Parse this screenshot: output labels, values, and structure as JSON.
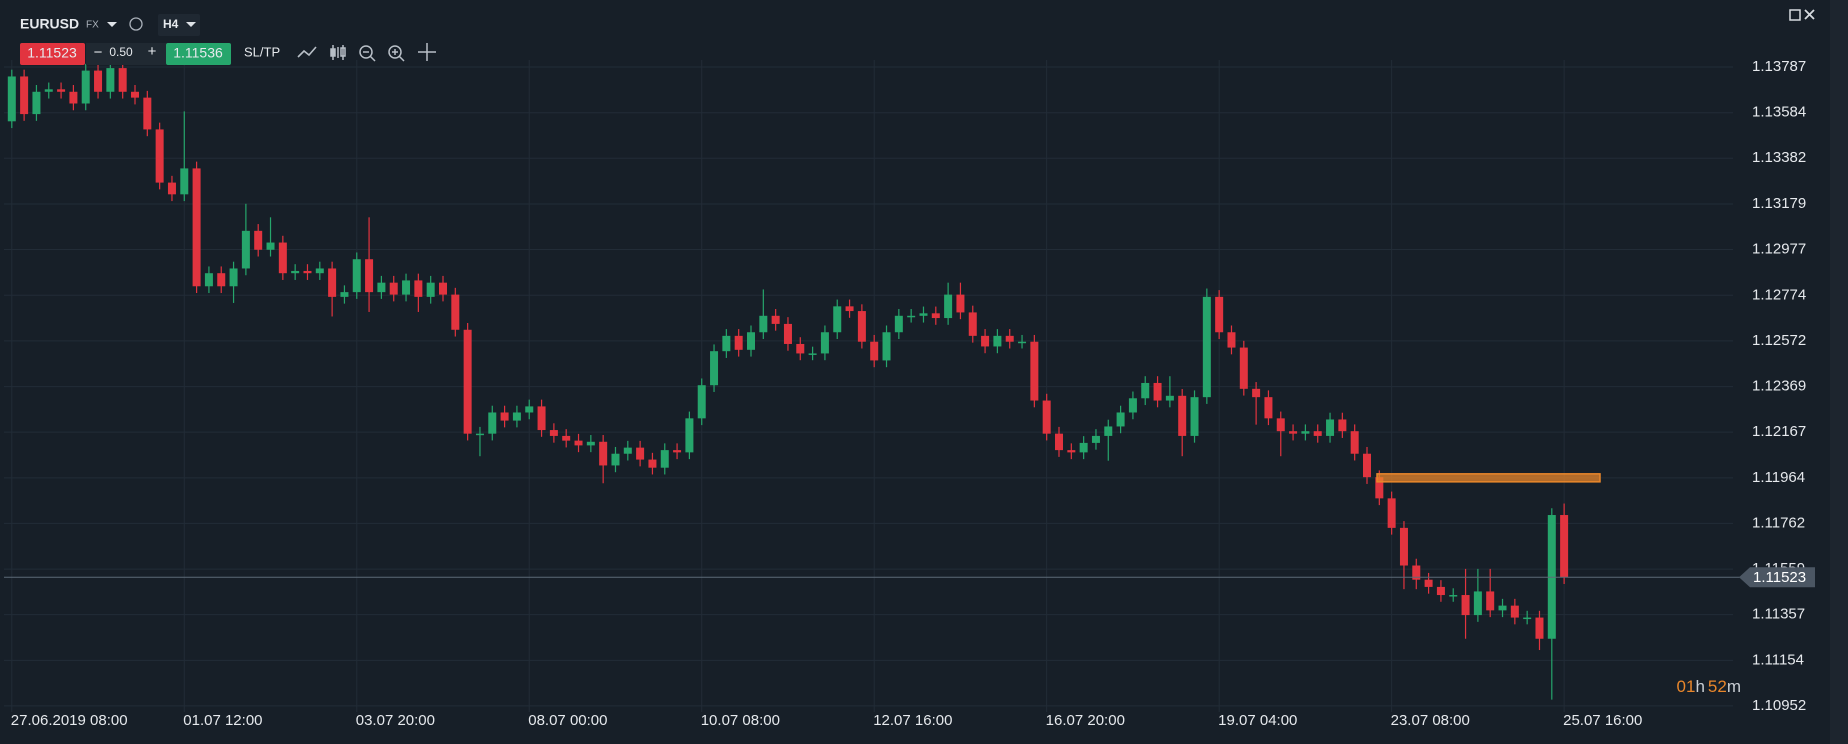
{
  "toolbar": {
    "symbol": "EURUSD",
    "market": "FX",
    "timeframe": "H4",
    "bid": "1.11523",
    "minus": "−",
    "spread": "0.50",
    "plus": "+",
    "ask": "1.11536",
    "sltp": "SL/TP"
  },
  "timer": {
    "hours": "01",
    "hours_unit": "h",
    "minutes": "52",
    "minutes_unit": "m"
  },
  "chart_data": {
    "type": "candlestick",
    "up_color": "#26a66c",
    "down_color": "#e2343f",
    "grid": true,
    "ylim": [
      1.10925,
      1.13818
    ],
    "yticks": [
      1.13787,
      1.13584,
      1.13382,
      1.13179,
      1.12977,
      1.12774,
      1.12572,
      1.12369,
      1.12167,
      1.11964,
      1.11762,
      1.11559,
      1.11357,
      1.11154,
      1.10952
    ],
    "current_price": 1.11523,
    "alert_level": 1.11964,
    "alert_color": "#e8862b",
    "categories": [
      "27.06.2019 08:00",
      null,
      null,
      null,
      null,
      null,
      null,
      null,
      null,
      null,
      null,
      null,
      null,
      null,
      "01.07 12:00",
      null,
      null,
      null,
      null,
      null,
      null,
      null,
      null,
      null,
      null,
      null,
      null,
      null,
      "03.07 20:00",
      null,
      null,
      null,
      null,
      null,
      null,
      null,
      null,
      null,
      null,
      null,
      null,
      null,
      "08.07 00:00",
      null,
      null,
      null,
      null,
      null,
      null,
      null,
      null,
      null,
      null,
      null,
      null,
      null,
      "10.07 08:00",
      null,
      null,
      null,
      null,
      null,
      null,
      null,
      null,
      null,
      null,
      null,
      null,
      null,
      "12.07 16:00",
      null,
      null,
      null,
      null,
      null,
      null,
      null,
      null,
      null,
      null,
      null,
      null,
      null,
      "16.07 20:00",
      null,
      null,
      null,
      null,
      null,
      null,
      null,
      null,
      null,
      null,
      null,
      null,
      null,
      "19.07 04:00",
      null,
      null,
      null,
      null,
      null,
      null,
      null,
      null,
      null,
      null,
      null,
      null,
      null,
      "23.07 08:00",
      null,
      null,
      null,
      null,
      null,
      null,
      null,
      null,
      null,
      null,
      null,
      null,
      null,
      "25.07 16:00"
    ],
    "open": [
      1.13546,
      1.13745,
      1.13578,
      1.13677,
      1.13688,
      1.13677,
      1.13625,
      1.13771,
      1.13677,
      1.13782,
      1.13677,
      1.13651,
      1.1351,
      1.13274,
      1.13222,
      1.13337,
      1.12814,
      1.12872,
      1.12814,
      1.12893,
      1.1306,
      1.12976,
      1.13008,
      1.12872,
      1.12882,
      1.12872,
      1.12893,
      1.12767,
      1.12788,
      1.12934,
      1.12788,
      1.1283,
      1.12777,
      1.1284,
      1.12767,
      1.1283,
      1.12777,
      1.12621,
      1.1216,
      1.1216,
      1.12254,
      1.12218,
      1.12254,
      1.12281,
      1.12176,
      1.1215,
      1.12129,
      1.12108,
      1.12124,
      1.12019,
      1.12071,
      1.12098,
      1.12045,
      1.12009,
      1.12087,
      1.12077,
      1.12228,
      1.12375,
      1.12526,
      1.12594,
      1.12532,
      1.1261,
      1.12683,
      1.12647,
      1.12558,
      1.12516,
      1.12516,
      1.1261,
      1.12725,
      1.12704,
      1.12568,
      1.12485,
      1.1261,
      1.12683,
      1.12683,
      1.12694,
      1.12673,
      1.12777,
      1.12698,
      1.12594,
      1.12547,
      1.12594,
      1.12568,
      1.12568,
      1.12307,
      1.1216,
      1.12087,
      1.12077,
      1.12119,
      1.1215,
      1.12192,
      1.12254,
      1.12317,
      1.12385,
      1.12307,
      1.12328,
      1.1215,
      1.12322,
      1.12767,
      1.1261,
      1.12542,
      1.12359,
      1.12322,
      1.12228,
      1.12171,
      1.1216,
      1.12171,
      1.1215,
      1.12223,
      1.12171,
      1.12071,
      1.11967,
      1.11873,
      1.11742,
      1.11575,
      1.11512,
      1.1148,
      1.11444,
      1.11444,
      1.11355,
      1.1146,
      1.11376,
      1.11397,
      1.11344,
      1.11344,
      1.1125,
      1.11799
    ],
    "high": [
      1.13775,
      1.13775,
      1.13707,
      1.13718,
      1.13718,
      1.13707,
      1.13801,
      1.13801,
      1.13812,
      1.13812,
      1.13707,
      1.13681,
      1.1354,
      1.13304,
      1.1359,
      1.13367,
      1.12902,
      1.12902,
      1.12923,
      1.1318,
      1.1309,
      1.1312,
      1.13038,
      1.12912,
      1.12912,
      1.12923,
      1.12923,
      1.12818,
      1.12964,
      1.1312,
      1.1286,
      1.1286,
      1.1287,
      1.1287,
      1.1286,
      1.1286,
      1.12807,
      1.12651,
      1.1219,
      1.12284,
      1.12284,
      1.12284,
      1.12311,
      1.12311,
      1.12206,
      1.1218,
      1.12159,
      1.12154,
      1.12154,
      1.12101,
      1.12128,
      1.12128,
      1.12075,
      1.12117,
      1.12117,
      1.12258,
      1.12405,
      1.12556,
      1.12624,
      1.12624,
      1.1264,
      1.128,
      1.12713,
      1.12677,
      1.12588,
      1.12546,
      1.1264,
      1.12755,
      1.12755,
      1.12734,
      1.12598,
      1.1264,
      1.12713,
      1.12713,
      1.12724,
      1.12724,
      1.1283,
      1.1283,
      1.12728,
      1.12624,
      1.12624,
      1.12624,
      1.12598,
      1.12598,
      1.12337,
      1.1219,
      1.12117,
      1.12149,
      1.1218,
      1.12222,
      1.12284,
      1.12347,
      1.12415,
      1.12415,
      1.12415,
      1.12358,
      1.12352,
      1.12804,
      1.12797,
      1.1264,
      1.12572,
      1.12389,
      1.12352,
      1.12258,
      1.12201,
      1.12201,
      1.12201,
      1.12253,
      1.12253,
      1.12201,
      1.12101,
      1.11997,
      1.11903,
      1.11772,
      1.11605,
      1.11542,
      1.1151,
      1.11474,
      1.1156,
      1.1156,
      1.1156,
      1.11427,
      1.11427,
      1.11374,
      1.11374,
      1.11829,
      1.1185
    ],
    "low": [
      1.13516,
      1.13548,
      1.13548,
      1.13647,
      1.13647,
      1.13595,
      1.13595,
      1.13647,
      1.13647,
      1.13647,
      1.13621,
      1.1348,
      1.13244,
      1.13192,
      1.13192,
      1.12784,
      1.12784,
      1.12784,
      1.1274,
      1.12863,
      1.12946,
      1.12946,
      1.12842,
      1.12842,
      1.12842,
      1.12842,
      1.1268,
      1.12737,
      1.12758,
      1.127,
      1.12758,
      1.12747,
      1.12747,
      1.127,
      1.12737,
      1.12747,
      1.12591,
      1.1213,
      1.1206,
      1.1213,
      1.12188,
      1.12188,
      1.12224,
      1.12146,
      1.1212,
      1.12099,
      1.12078,
      1.12078,
      1.1194,
      1.11989,
      1.12041,
      1.12015,
      1.11979,
      1.11979,
      1.12047,
      1.12047,
      1.12198,
      1.12345,
      1.12496,
      1.12502,
      1.12502,
      1.1258,
      1.12617,
      1.12528,
      1.12486,
      1.12486,
      1.12486,
      1.1258,
      1.12674,
      1.12538,
      1.12455,
      1.12455,
      1.1258,
      1.12653,
      1.12653,
      1.12643,
      1.12643,
      1.12668,
      1.12564,
      1.12517,
      1.12517,
      1.12538,
      1.12538,
      1.12277,
      1.1213,
      1.12057,
      1.12047,
      1.12047,
      1.12089,
      1.1204,
      1.12162,
      1.12224,
      1.12287,
      1.12277,
      1.12277,
      1.1206,
      1.1212,
      1.12292,
      1.1258,
      1.12512,
      1.12329,
      1.122,
      1.12198,
      1.1206,
      1.1213,
      1.1213,
      1.1212,
      1.1212,
      1.12141,
      1.12041,
      1.11937,
      1.11843,
      1.11712,
      1.1147,
      1.1147,
      1.1145,
      1.11414,
      1.11414,
      1.1125,
      1.11325,
      1.11346,
      1.11346,
      1.11314,
      1.11314,
      1.112,
      1.1098,
      1.11493
    ],
    "close": [
      1.13745,
      1.13578,
      1.13677,
      1.13688,
      1.13677,
      1.13625,
      1.13771,
      1.13677,
      1.13782,
      1.13677,
      1.13651,
      1.1351,
      1.13274,
      1.13222,
      1.13337,
      1.12814,
      1.12872,
      1.12814,
      1.12893,
      1.1306,
      1.12976,
      1.13008,
      1.12872,
      1.12882,
      1.12872,
      1.12893,
      1.12767,
      1.12788,
      1.12934,
      1.12788,
      1.1283,
      1.12777,
      1.1284,
      1.12767,
      1.1283,
      1.12777,
      1.12621,
      1.1216,
      1.1216,
      1.12254,
      1.12218,
      1.12254,
      1.12281,
      1.12176,
      1.1215,
      1.12129,
      1.12108,
      1.12124,
      1.12019,
      1.12071,
      1.12098,
      1.12045,
      1.12009,
      1.12087,
      1.12077,
      1.12228,
      1.12375,
      1.12526,
      1.12594,
      1.12532,
      1.1261,
      1.12683,
      1.12647,
      1.12558,
      1.12516,
      1.12516,
      1.1261,
      1.12725,
      1.12704,
      1.12568,
      1.12485,
      1.1261,
      1.12683,
      1.12683,
      1.12694,
      1.12673,
      1.12777,
      1.12698,
      1.12594,
      1.12547,
      1.12594,
      1.12568,
      1.12568,
      1.12307,
      1.1216,
      1.12087,
      1.12077,
      1.12119,
      1.1215,
      1.12192,
      1.12254,
      1.12317,
      1.12385,
      1.12307,
      1.12328,
      1.1215,
      1.12322,
      1.12767,
      1.1261,
      1.12542,
      1.12359,
      1.12322,
      1.12228,
      1.12171,
      1.1216,
      1.12171,
      1.1215,
      1.12223,
      1.12171,
      1.12071,
      1.11967,
      1.11873,
      1.11742,
      1.11575,
      1.11512,
      1.1148,
      1.11444,
      1.11444,
      1.11355,
      1.1146,
      1.11376,
      1.11397,
      1.11344,
      1.11344,
      1.1125,
      1.11799,
      1.11523
    ]
  }
}
